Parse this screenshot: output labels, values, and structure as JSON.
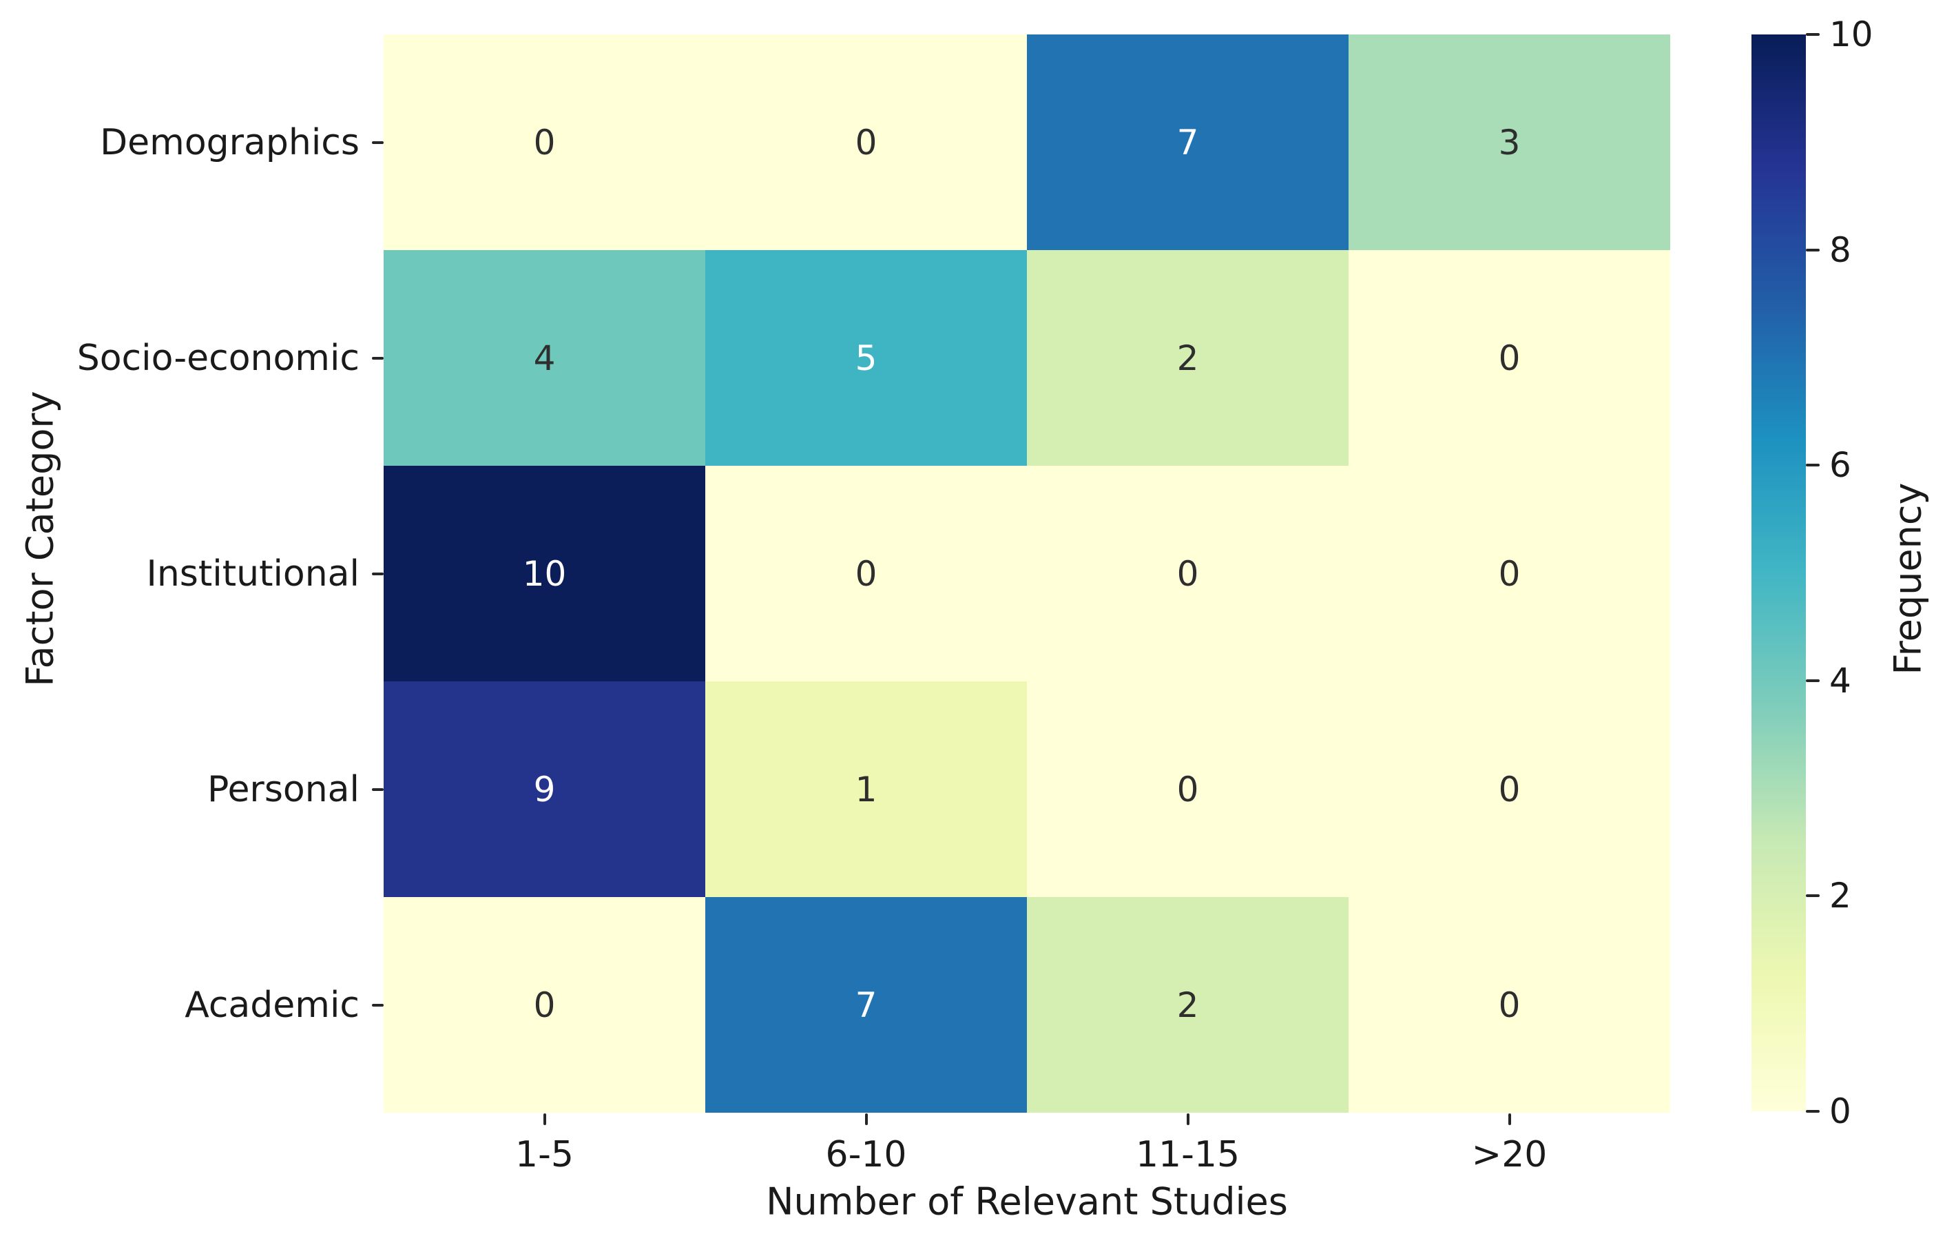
{
  "figure": {
    "background": "#ffffff"
  },
  "chart_data": {
    "type": "heatmap",
    "title": "",
    "xlabel": "Number of Relevant Studies",
    "ylabel": "Factor Category",
    "x_categories": [
      "1-5",
      "6-10",
      "11-15",
      ">20"
    ],
    "y_categories": [
      "Demographics",
      "Socio-economic",
      "Institutional",
      "Personal",
      "Academic"
    ],
    "values": [
      [
        0,
        0,
        7,
        3
      ],
      [
        4,
        5,
        2,
        0
      ],
      [
        10,
        0,
        0,
        0
      ],
      [
        9,
        1,
        0,
        0
      ],
      [
        0,
        7,
        2,
        0
      ]
    ],
    "vmin": 0,
    "vmax": 10,
    "grid": false,
    "legend_position": "right-colorbar",
    "colormap": "YlGnBu",
    "colormap_stops_top_to_bottom": [
      "#081d58",
      "#253494",
      "#225ea8",
      "#1d91c0",
      "#41b6c4",
      "#7fcdbb",
      "#c7e9b4",
      "#edf8b1",
      "#ffffd9"
    ],
    "value_colors": {
      "0": "#ffffd8",
      "1": "#eef8b2",
      "2": "#d5efb3",
      "3": "#a9ddb8",
      "4": "#6ec8bb",
      "5": "#3fb5c3",
      "7": "#2173b2",
      "9": "#24338c",
      "10": "#0c1e5a"
    },
    "annotation_colors": {
      "dark": "#2e2e2e",
      "light": "#ffffff"
    },
    "light_text_min_value": 5,
    "axis_text_color": "#1a1a1a",
    "tick_color": "#262626",
    "colorbar": {
      "label": "Frequency",
      "ticks": [
        0,
        2,
        4,
        6,
        8,
        10
      ]
    }
  }
}
